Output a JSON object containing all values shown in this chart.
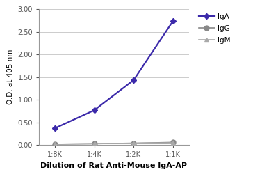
{
  "x_labels": [
    "1:8K",
    "1:4K",
    "1:2K",
    "1:1K"
  ],
  "x_values": [
    1,
    2,
    3,
    4
  ],
  "IgA_values": [
    0.37,
    0.77,
    1.44,
    2.75
  ],
  "IgG_values": [
    0.02,
    0.03,
    0.04,
    0.06
  ],
  "IgM_values": [
    0.02,
    0.03,
    0.04,
    0.05
  ],
  "IgA_color": "#3c2aaa",
  "IgG_color": "#888888",
  "IgM_color": "#aaaaaa",
  "ylabel": "O.D. at 405 nm",
  "xlabel": "Dilution of Rat Anti-Mouse IgA-AP",
  "ylim": [
    0,
    3.0
  ],
  "yticks": [
    0.0,
    0.5,
    1.0,
    1.5,
    2.0,
    2.5,
    3.0
  ],
  "label_fontsize": 7.5,
  "tick_fontsize": 7,
  "legend_fontsize": 7.5,
  "xlabel_fontsize": 8
}
